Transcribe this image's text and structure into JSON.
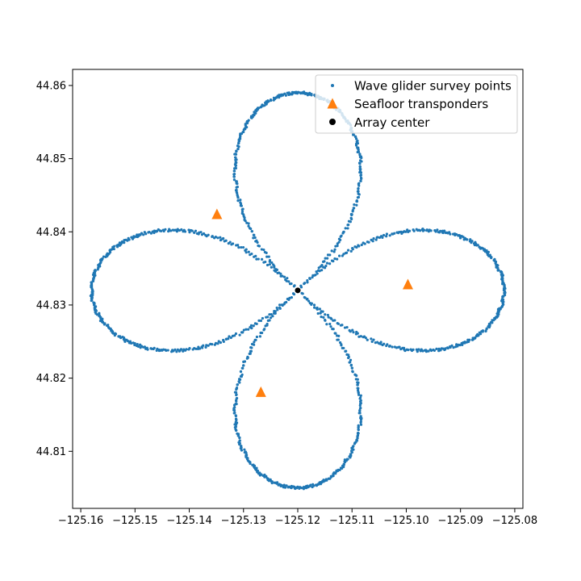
{
  "chart_data": {
    "type": "scatter",
    "title": "",
    "xlabel": "",
    "ylabel": "",
    "xlim": [
      -125.1615,
      -125.0785
    ],
    "ylim": [
      44.8022,
      44.8622
    ],
    "xticks": [
      -125.16,
      -125.15,
      -125.14,
      -125.13,
      -125.12,
      -125.11,
      -125.1,
      -125.09,
      -125.08
    ],
    "xtick_labels": [
      "−125.16",
      "−125.15",
      "−125.14",
      "−125.13",
      "−125.12",
      "−125.11",
      "−125.10",
      "−125.09",
      "−125.08"
    ],
    "yticks": [
      44.81,
      44.82,
      44.83,
      44.84,
      44.85,
      44.86
    ],
    "ytick_labels": [
      "44.81",
      "44.82",
      "44.83",
      "44.84",
      "44.85",
      "44.86"
    ],
    "grid": false,
    "legend_position": "top-right",
    "survey": {
      "name": "Wave glider survey points",
      "color": "#1f77b4",
      "marker": "point",
      "center": [
        -125.12,
        44.832
      ],
      "pattern": "four-leaf clover",
      "lobe_extent_lon": 0.038,
      "lobe_extent_lat": 0.027,
      "loops": [
        {
          "direction": "north",
          "extent": [
            44.832,
            44.859
          ]
        },
        {
          "direction": "south",
          "extent": [
            44.805,
            44.832
          ]
        },
        {
          "direction": "east",
          "extent": [
            -125.12,
            -125.082
          ]
        },
        {
          "direction": "west",
          "extent": [
            -125.158,
            -125.12
          ]
        }
      ]
    },
    "transponders": {
      "name": "Seafloor transponders",
      "color": "#ff7f0e",
      "marker": "triangle",
      "points": [
        {
          "x": -125.1349,
          "y": 44.8424
        },
        {
          "x": -125.0997,
          "y": 44.8328
        },
        {
          "x": -125.1268,
          "y": 44.8181
        }
      ]
    },
    "array_center": {
      "name": "Array center",
      "color": "#000000",
      "marker": "circle",
      "x": -125.12,
      "y": 44.832
    }
  }
}
